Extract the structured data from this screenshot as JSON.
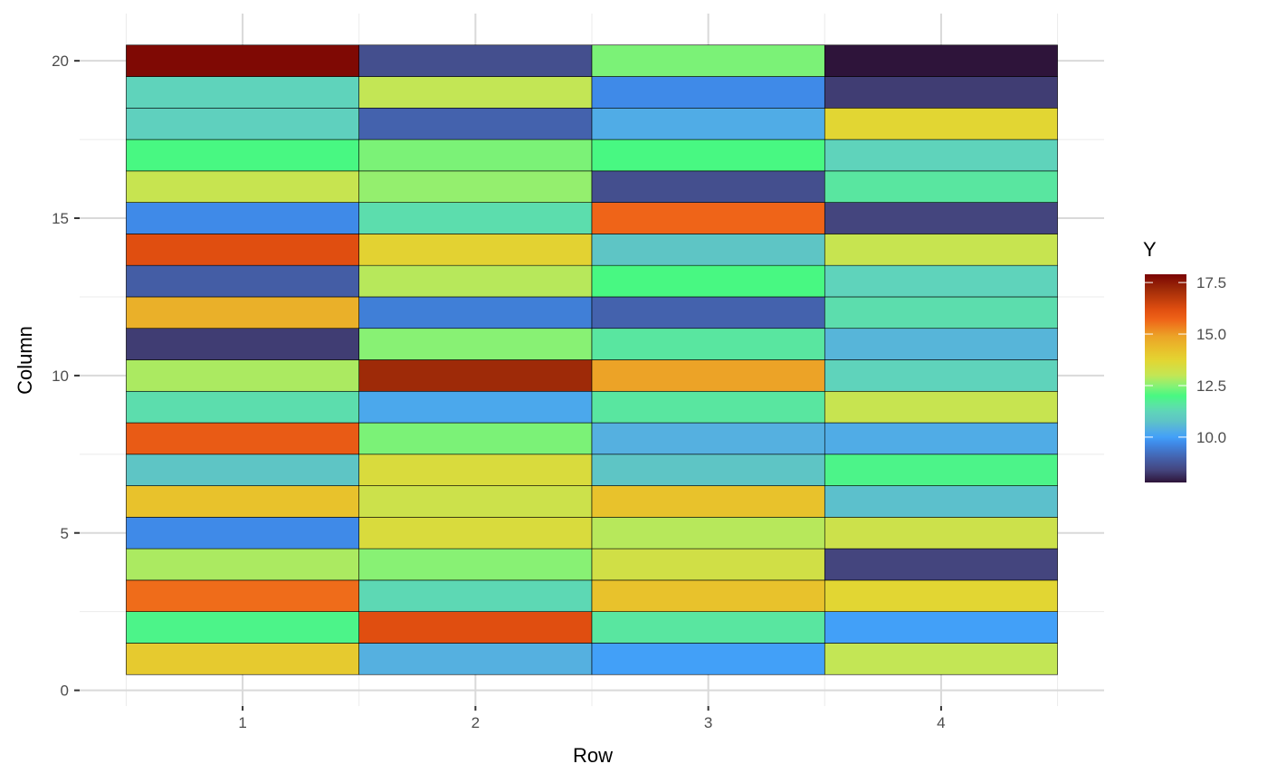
{
  "chart_data": {
    "type": "heatmap",
    "title": "",
    "xlabel": "Row",
    "ylabel": "Column",
    "x_categories": [
      1,
      2,
      3,
      4
    ],
    "y_categories": [
      1,
      2,
      3,
      4,
      5,
      6,
      7,
      8,
      9,
      10,
      11,
      12,
      13,
      14,
      15,
      16,
      17,
      18,
      19,
      20
    ],
    "xlim": [
      0.3,
      4.7
    ],
    "ylim": [
      -0.5,
      21.5
    ],
    "x_ticks": [
      "1",
      "2",
      "3",
      "4"
    ],
    "y_ticks": [
      "0",
      "5",
      "10",
      "15",
      "20"
    ],
    "grid": true,
    "values_by_row": [
      [
        14.0,
        11.9,
        15.6,
        12.8,
        9.7,
        14.2,
        10.8,
        15.9,
        11.4,
        12.8,
        8.3,
        14.6,
        8.9,
        16.2,
        9.7,
        13.1,
        12.0,
        11.1,
        11.2,
        17.8
      ],
      [
        10.4,
        16.2,
        11.3,
        12.5,
        13.5,
        13.2,
        13.5,
        12.4,
        10.2,
        17.2,
        12.5,
        9.5,
        12.9,
        13.8,
        11.4,
        12.6,
        12.4,
        9.0,
        13.0,
        8.6
      ],
      [
        10.0,
        11.6,
        14.2,
        13.3,
        12.9,
        14.2,
        10.8,
        10.4,
        11.6,
        14.9,
        11.6,
        9.0,
        12.0,
        10.8,
        15.7,
        8.6,
        12.0,
        10.3,
        9.7,
        12.4
      ],
      [
        13.0,
        10.0,
        13.7,
        8.4,
        13.2,
        10.7,
        11.9,
        10.3,
        13.1,
        11.2,
        10.5,
        11.4,
        11.2,
        13.1,
        8.4,
        11.6,
        11.2,
        13.7,
        8.3,
        7.8
      ]
    ],
    "legend": {
      "title": "Y",
      "position": "right",
      "ticks": [
        "10.0",
        "12.5",
        "15.0",
        "17.5"
      ],
      "tick_values": [
        10.0,
        12.5,
        15.0,
        17.5
      ],
      "range": [
        7.8,
        17.9
      ]
    },
    "colorscale": [
      [
        7.8,
        "#2e143a"
      ],
      [
        8.4,
        "#44457e"
      ],
      [
        9.0,
        "#4462ad"
      ],
      [
        9.7,
        "#3f8ae8"
      ],
      [
        10.0,
        "#42a0f8"
      ],
      [
        10.4,
        "#55b0e0"
      ],
      [
        10.8,
        "#5ec5c5"
      ],
      [
        11.2,
        "#5fd3bb"
      ],
      [
        11.6,
        "#59e6a0"
      ],
      [
        12.0,
        "#48f882"
      ],
      [
        12.5,
        "#88f174"
      ],
      [
        13.0,
        "#c3e655"
      ],
      [
        13.7,
        "#e2d633"
      ],
      [
        14.2,
        "#e8c22c"
      ],
      [
        14.9,
        "#eca327"
      ],
      [
        15.7,
        "#ef6418"
      ],
      [
        16.2,
        "#e04e10"
      ],
      [
        17.2,
        "#9e2a08"
      ],
      [
        17.9,
        "#7a0403"
      ]
    ]
  }
}
